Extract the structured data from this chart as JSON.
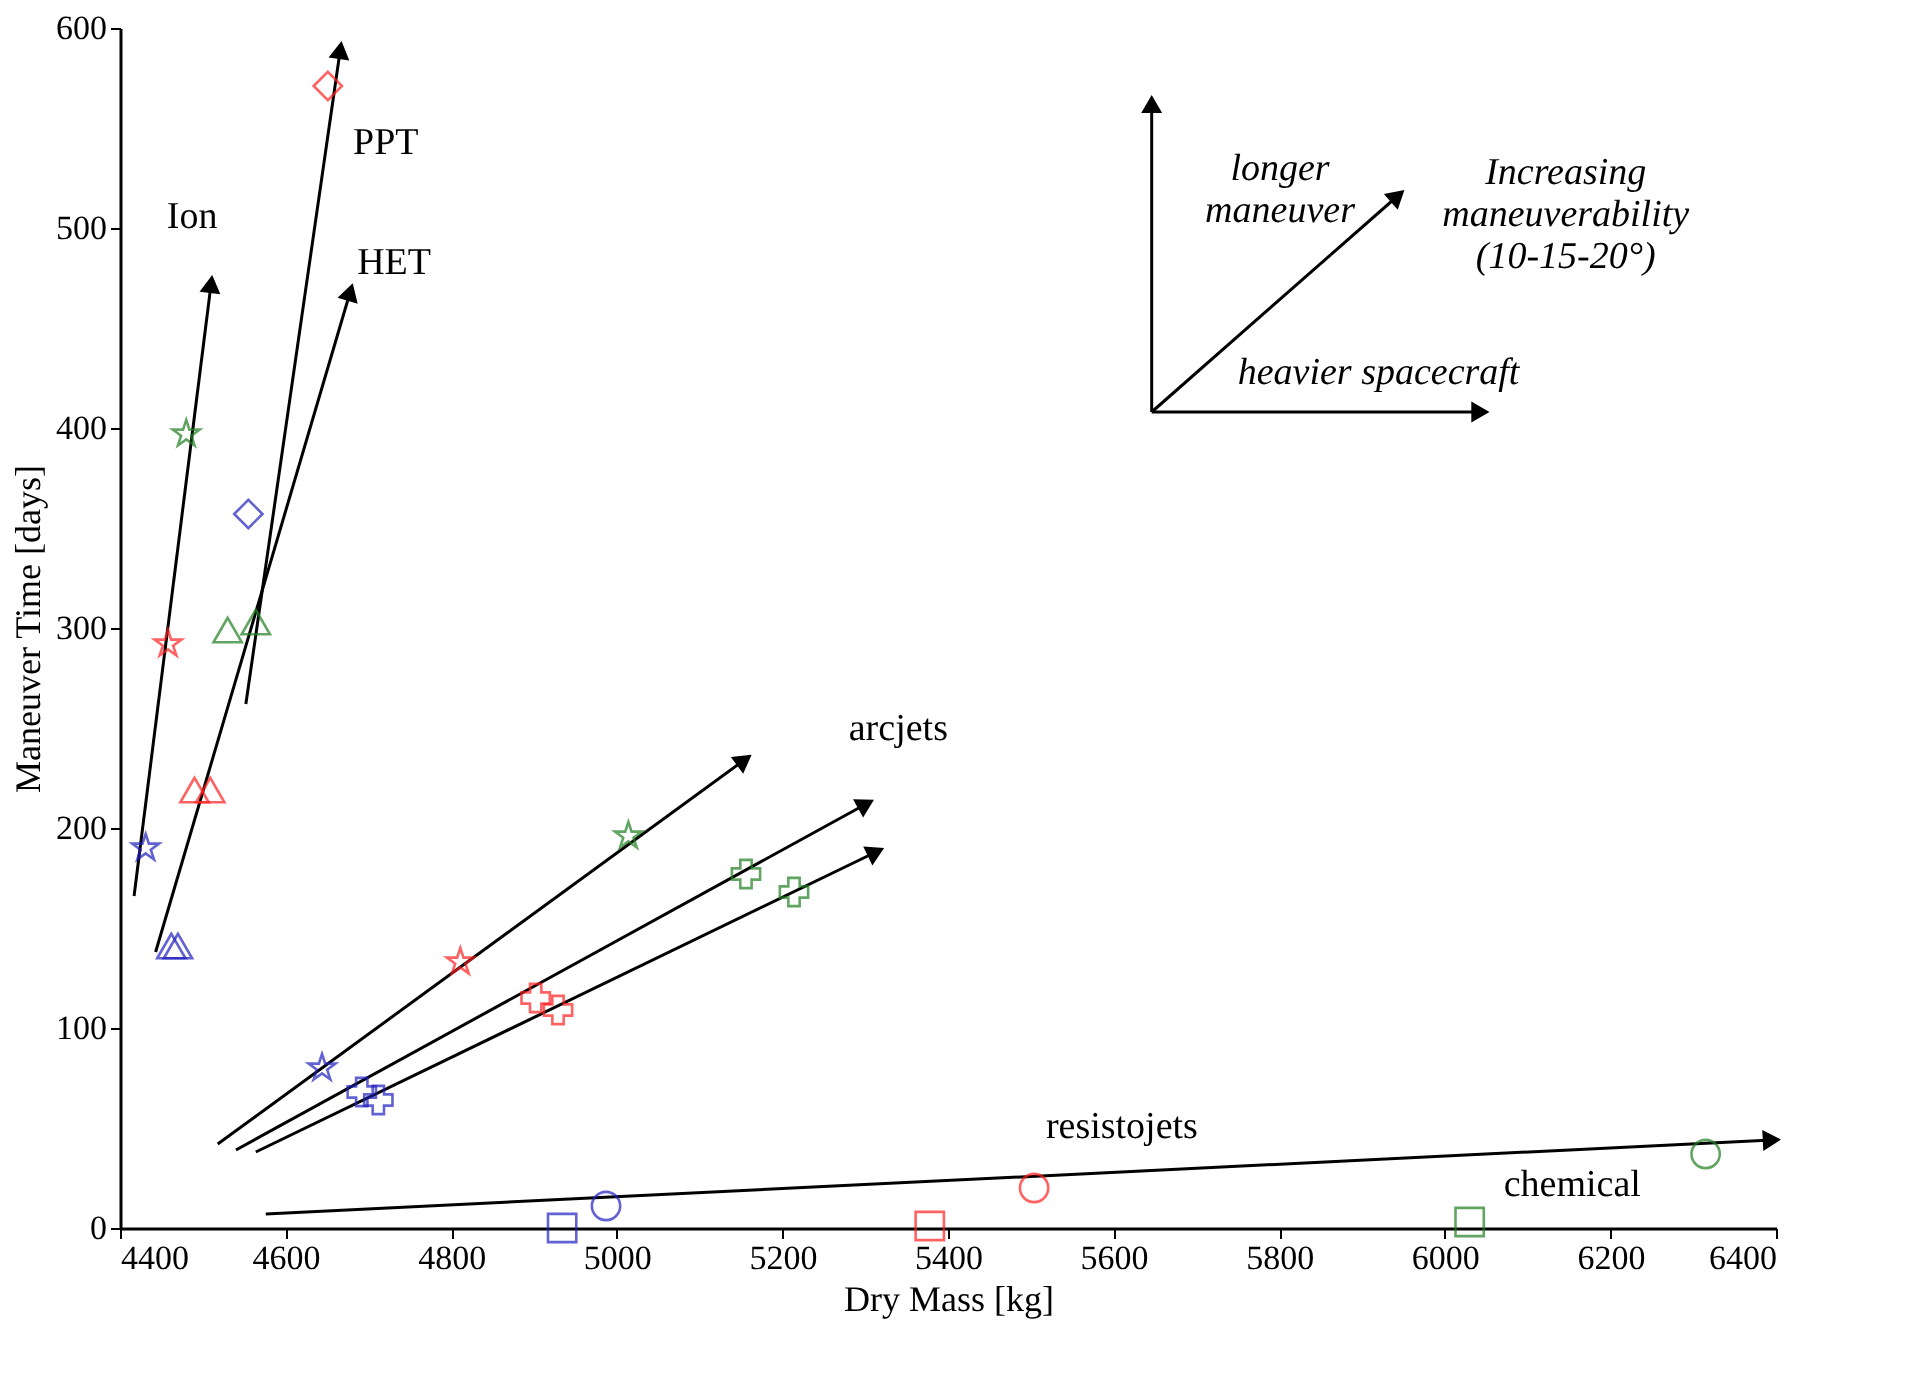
{
  "chart_data": {
    "type": "scatter",
    "xlabel": "Dry Mass [kg]",
    "ylabel": "Maneuver Time [days]",
    "xlim": [
      4400,
      6400
    ],
    "xticks": [
      4400,
      4600,
      4800,
      5000,
      5200,
      5400,
      5600,
      5800,
      6000,
      6200,
      6400
    ],
    "ylim": [
      0,
      600
    ],
    "yticks": [
      0,
      100,
      200,
      300,
      400,
      500,
      600
    ],
    "grid": false,
    "series": [
      {
        "type": "line",
        "color": "#000000",
        "x": [
          4417,
          4510
        ],
        "values": [
          166,
          472
        ]
      },
      {
        "type": "line",
        "color": "#000000",
        "x": [
          4552,
          4666
        ],
        "values": [
          262,
          589
        ]
      },
      {
        "type": "line",
        "color": "#000000",
        "x": [
          4443,
          4678
        ],
        "values": [
          138,
          468
        ]
      },
      {
        "type": "line",
        "color": "#000000",
        "x": [
          4518,
          5154
        ],
        "values": [
          42,
          234
        ]
      },
      {
        "type": "line",
        "color": "#000000",
        "x": [
          4540,
          5301
        ],
        "values": [
          39,
          212
        ]
      },
      {
        "type": "line",
        "color": "#000000",
        "x": [
          4564,
          5313
        ],
        "values": [
          38,
          188
        ]
      },
      {
        "type": "line",
        "color": "#000000",
        "x": [
          4576,
          6395
        ],
        "values": [
          7,
          44
        ]
      },
      {
        "type": "line",
        "color": "#000000",
        "x": [
          5646,
          5646
        ],
        "values": [
          408,
          562
        ]
      },
      {
        "type": "line",
        "color": "#000000",
        "x": [
          5646,
          6043
        ],
        "values": [
          408,
          408
        ]
      },
      {
        "type": "line",
        "color": "#000000",
        "x": [
          5646,
          5943
        ],
        "values": [
          408,
          516
        ]
      },
      {
        "marker": "star",
        "x": [
          4431,
          4458,
          4480
        ],
        "values": [
          190,
          292,
          397
        ],
        "colors": [
          "#2020c0",
          "#ff2020",
          "#208020"
        ]
      },
      {
        "marker": "triangle",
        "x": [
          4462,
          4490,
          4530
        ],
        "values": [
          141,
          219,
          299
        ],
        "colors": [
          "#2020c0",
          "#ff2020",
          "#208020"
        ]
      },
      {
        "marker": "triangle",
        "x": [
          4470,
          4509,
          4564
        ],
        "values": [
          141,
          219,
          303
        ],
        "colors": [
          "#2020c0",
          "#ff2020",
          "#208020"
        ]
      },
      {
        "marker": "diamond",
        "x": [
          4555,
          4651
        ],
        "values": [
          357,
          571
        ],
        "colors": [
          "#2020c0",
          "#ff2020"
        ]
      },
      {
        "marker": "star",
        "x": [
          4644,
          4811,
          5014
        ],
        "values": [
          80,
          133,
          196
        ],
        "colors": [
          "#2020c0",
          "#ff2020",
          "#208020"
        ]
      },
      {
        "marker": "cross",
        "x": [
          4692,
          4902,
          5156
        ],
        "values": [
          68,
          115,
          177
        ],
        "colors": [
          "#2020c0",
          "#ff2020",
          "#208020"
        ]
      },
      {
        "marker": "cross",
        "x": [
          4712,
          4929,
          5214
        ],
        "values": [
          64,
          109,
          168
        ],
        "colors": [
          "#2020c0",
          "#ff2020",
          "#208020"
        ]
      },
      {
        "marker": "circle",
        "x": [
          4987,
          5504,
          6315
        ],
        "values": [
          11,
          20,
          37
        ],
        "colors": [
          "#2020c0",
          "#ff2020",
          "#208020"
        ]
      },
      {
        "marker": "square",
        "x": [
          4934,
          5378,
          6030
        ],
        "values": [
          0,
          1,
          3
        ],
        "colors": [
          "#2020c0",
          "#ff2020",
          "#208020"
        ]
      }
    ],
    "annotations": [
      "Ion",
      "PPT",
      "HET",
      "arcjets",
      "resistojets",
      "chemical",
      "longer\nmaneuver",
      "Increasing\nmaneuverability\n(10-15-20°)",
      "heavier spacecraft"
    ]
  }
}
